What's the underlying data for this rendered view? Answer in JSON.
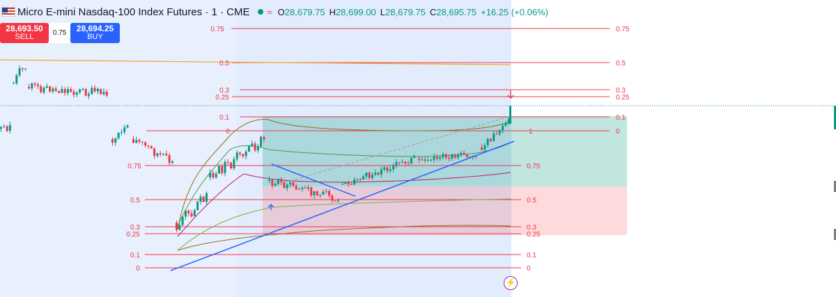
{
  "header": {
    "title": "Micro E-mini Nasdaq-100 Index Futures · 1 · CME",
    "open_label": "O",
    "open_value": "28,679.75",
    "high_label": "H",
    "high_value": "28,699.00",
    "low_label": "L",
    "low_value": "28,679.75",
    "close_label": "C",
    "close_value": "28,695.75",
    "change": "+16.25 (+0.06%)",
    "status_icon": "green-dot",
    "wave_icon": "approx-wave-icon"
  },
  "trade": {
    "sell_price": "28,693.50",
    "sell_label": "SELL",
    "spread": "0.75",
    "buy_price": "28,694.25",
    "buy_label": "BUY"
  },
  "colors": {
    "up": "#089981",
    "down": "#f23645",
    "fib": "#f23645",
    "trendline": "#2962ff",
    "highlight_bg": "#e3ecfd",
    "orange_line": "#f5a623"
  },
  "chart_data": {
    "type": "candlestick",
    "fib_right": {
      "levels": [
        "0.75",
        "0.5",
        "0.3",
        "0.25",
        "0.1",
        "0"
      ]
    },
    "fib_left": {
      "levels": [
        "0.75",
        "0.5",
        "0.3",
        "0.25",
        "0.1",
        "0"
      ]
    },
    "position_label": "1",
    "bolt_icon": "lightning-icon"
  }
}
